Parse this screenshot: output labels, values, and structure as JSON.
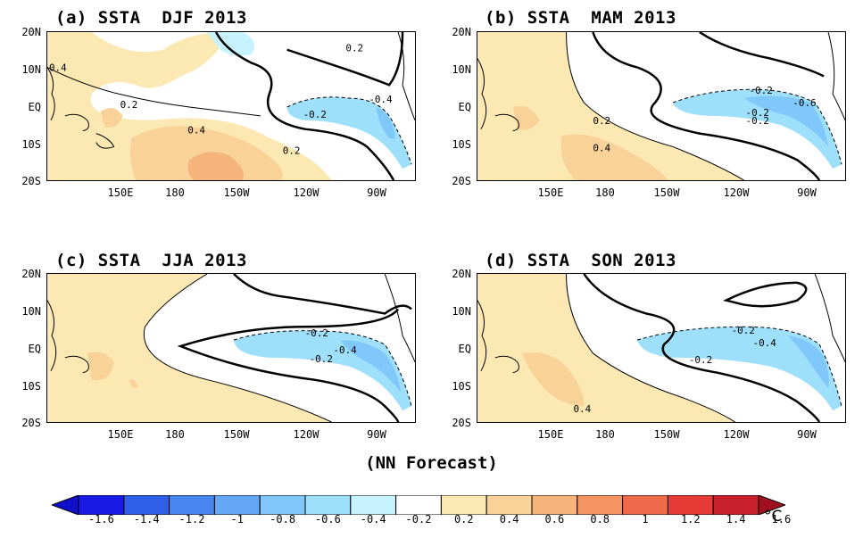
{
  "panels": [
    {
      "title": "(a) SSTA  DJF 2013",
      "contour_labels": [
        "0.4",
        "0.2",
        "0.4",
        "0.2",
        "0.2",
        "-0.2",
        "-0.4"
      ]
    },
    {
      "title": "(b) SSTA  MAM 2013",
      "contour_labels": [
        "-0.2",
        "-0.6",
        "-0.2",
        "-0.2",
        "0.2",
        "0.4"
      ]
    },
    {
      "title": "(c) SSTA  JJA 2013",
      "contour_labels": [
        "-0.2",
        "-0.4",
        "-0.2"
      ]
    },
    {
      "title": "(d) SSTA  SON 2013",
      "contour_labels": [
        "-0.2",
        "-0.4",
        "-0.2",
        "0.4"
      ]
    }
  ],
  "y_ticks": [
    "20N",
    "10N",
    "EQ",
    "10S",
    "20S"
  ],
  "x_ticks": [
    "150E",
    "180",
    "150W",
    "120W",
    "90W"
  ],
  "footer_label": "(NN Forecast)",
  "colorbar": {
    "labels": [
      "-1.6",
      "-1.4",
      "-1.2",
      "-1",
      "-0.8",
      "-0.6",
      "-0.4",
      "-0.2",
      "0.2",
      "0.4",
      "0.6",
      "0.8",
      "1",
      "1.2",
      "1.4",
      "1.6"
    ],
    "colors": [
      "#1a1ae6",
      "#2f5fe8",
      "#4a86f0",
      "#64a8f5",
      "#80c8fa",
      "#9ee0fc",
      "#c6f3ff",
      "#ffffff",
      "#fbe8b2",
      "#f9d29a",
      "#f5b47c",
      "#f49460",
      "#ee6a4a",
      "#e53a36",
      "#c8202c"
    ],
    "low_color": "#1010c8",
    "high_color": "#a01020",
    "unit": "°C"
  }
}
